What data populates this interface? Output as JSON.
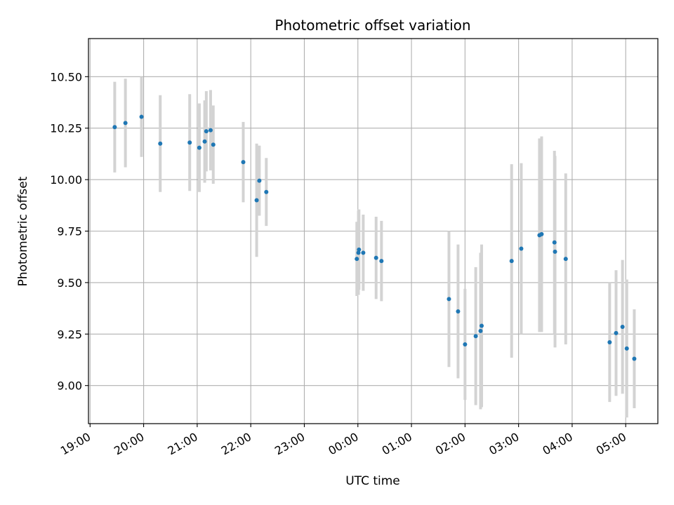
{
  "chart_data": {
    "type": "scatter",
    "title": "Photometric offset variation",
    "xlabel": "UTC time",
    "ylabel": "Photometric offset",
    "x_unit": "hours since 19:00 UTC",
    "xlim": [
      -0.03,
      10.6
    ],
    "ylim": [
      8.815,
      10.685
    ],
    "grid": true,
    "x_ticks": [
      0,
      1,
      2,
      3,
      4,
      5,
      6,
      7,
      8,
      9,
      10
    ],
    "x_tick_labels": [
      "19:00",
      "20:00",
      "21:00",
      "22:00",
      "23:00",
      "00:00",
      "01:00",
      "02:00",
      "03:00",
      "04:00",
      "05:00"
    ],
    "y_ticks": [
      9.0,
      9.25,
      9.5,
      9.75,
      10.0,
      10.25,
      10.5
    ],
    "y_tick_labels": [
      "9.00",
      "9.25",
      "9.50",
      "9.75",
      "10.00",
      "10.25",
      "10.50"
    ],
    "point_color": "#1f77b4",
    "errorbar_color": "#d3d3d3",
    "series": [
      {
        "name": "Photometric offset",
        "points": [
          {
            "x": 0.46,
            "y": 10.255,
            "err": 0.22
          },
          {
            "x": 0.66,
            "y": 10.275,
            "err": 0.215
          },
          {
            "x": 0.96,
            "y": 10.305,
            "err": 0.195
          },
          {
            "x": 1.31,
            "y": 10.175,
            "err": 0.235
          },
          {
            "x": 1.86,
            "y": 10.18,
            "err": 0.235
          },
          {
            "x": 2.04,
            "y": 10.155,
            "err": 0.215
          },
          {
            "x": 2.14,
            "y": 10.185,
            "err": 0.2
          },
          {
            "x": 2.17,
            "y": 10.235,
            "err": 0.195
          },
          {
            "x": 2.25,
            "y": 10.24,
            "err": 0.195
          },
          {
            "x": 2.3,
            "y": 10.17,
            "err": 0.19
          },
          {
            "x": 2.86,
            "y": 10.085,
            "err": 0.195
          },
          {
            "x": 3.11,
            "y": 9.9,
            "err": 0.275
          },
          {
            "x": 3.16,
            "y": 9.995,
            "err": 0.17
          },
          {
            "x": 3.29,
            "y": 9.94,
            "err": 0.165
          },
          {
            "x": 4.98,
            "y": 9.615,
            "err": 0.18
          },
          {
            "x": 5.01,
            "y": 9.645,
            "err": 0.205
          },
          {
            "x": 5.02,
            "y": 9.66,
            "err": 0.195
          },
          {
            "x": 5.1,
            "y": 9.645,
            "err": 0.185
          },
          {
            "x": 5.34,
            "y": 9.62,
            "err": 0.2
          },
          {
            "x": 5.44,
            "y": 9.605,
            "err": 0.195
          },
          {
            "x": 6.7,
            "y": 9.42,
            "err": 0.33
          },
          {
            "x": 6.87,
            "y": 9.36,
            "err": 0.325
          },
          {
            "x": 7.0,
            "y": 9.2,
            "err": 0.27
          },
          {
            "x": 7.2,
            "y": 9.24,
            "err": 0.335
          },
          {
            "x": 7.29,
            "y": 9.265,
            "err": 0.38
          },
          {
            "x": 7.31,
            "y": 9.29,
            "err": 0.395
          },
          {
            "x": 7.87,
            "y": 9.605,
            "err": 0.47
          },
          {
            "x": 8.05,
            "y": 9.665,
            "err": 0.415
          },
          {
            "x": 8.39,
            "y": 9.73,
            "err": 0.47
          },
          {
            "x": 8.43,
            "y": 9.735,
            "err": 0.475
          },
          {
            "x": 8.67,
            "y": 9.695,
            "err": 0.445
          },
          {
            "x": 8.68,
            "y": 9.65,
            "err": 0.465
          },
          {
            "x": 8.88,
            "y": 9.615,
            "err": 0.415
          },
          {
            "x": 9.7,
            "y": 9.21,
            "err": 0.29
          },
          {
            "x": 9.82,
            "y": 9.255,
            "err": 0.305
          },
          {
            "x": 9.94,
            "y": 9.285,
            "err": 0.325
          },
          {
            "x": 10.02,
            "y": 9.18,
            "err": 0.335
          },
          {
            "x": 10.16,
            "y": 9.13,
            "err": 0.24
          }
        ]
      }
    ]
  }
}
